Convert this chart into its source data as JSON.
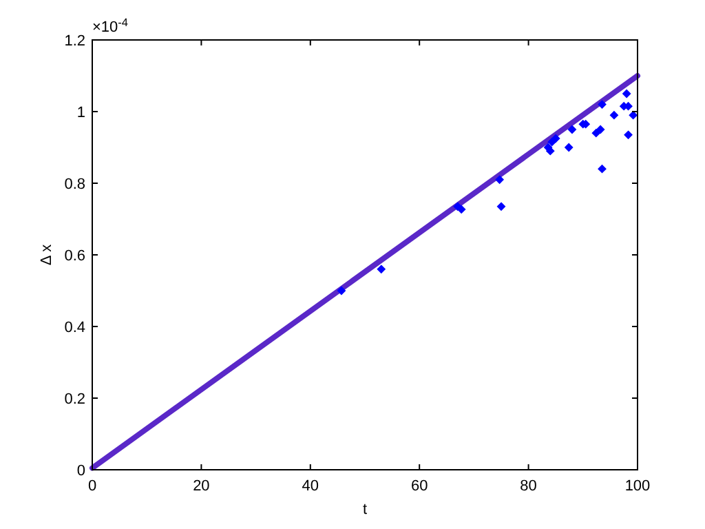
{
  "chart_data": {
    "type": "scatter",
    "xlabel": "t",
    "ylabel": "Δ x",
    "annotations": [
      "×10$^{-4}$"
    ],
    "xlim": [
      0,
      100
    ],
    "ylim": [
      0,
      1.2
    ],
    "xticks": [
      0,
      20,
      40,
      60,
      80,
      100
    ],
    "yticks": [
      0,
      0.2,
      0.4,
      0.6,
      0.8,
      1,
      1.2
    ],
    "grid": false,
    "marker": "diamond",
    "series": [
      {
        "type": "line",
        "marker": "none",
        "color": "#5a28c8",
        "x": [
          0,
          100
        ],
        "values": [
          0.005,
          1.1
        ]
      },
      {
        "color": "#0000ff",
        "x": [
          45.7,
          53,
          67,
          67.7,
          74.7,
          75,
          83.6,
          84,
          84.3,
          85,
          87.4,
          88,
          90,
          90.5,
          92.4,
          93.2,
          93.5,
          93.5,
          95.7,
          97.5,
          98,
          98.3,
          98.3,
          99.2
        ],
        "values": [
          0.5,
          0.56,
          0.735,
          0.727,
          0.81,
          0.735,
          0.9,
          0.89,
          0.915,
          0.925,
          0.9,
          0.95,
          0.965,
          0.965,
          0.94,
          0.95,
          1.02,
          0.84,
          0.99,
          1.015,
          1.05,
          1.015,
          0.935,
          0.99
        ]
      }
    ]
  }
}
